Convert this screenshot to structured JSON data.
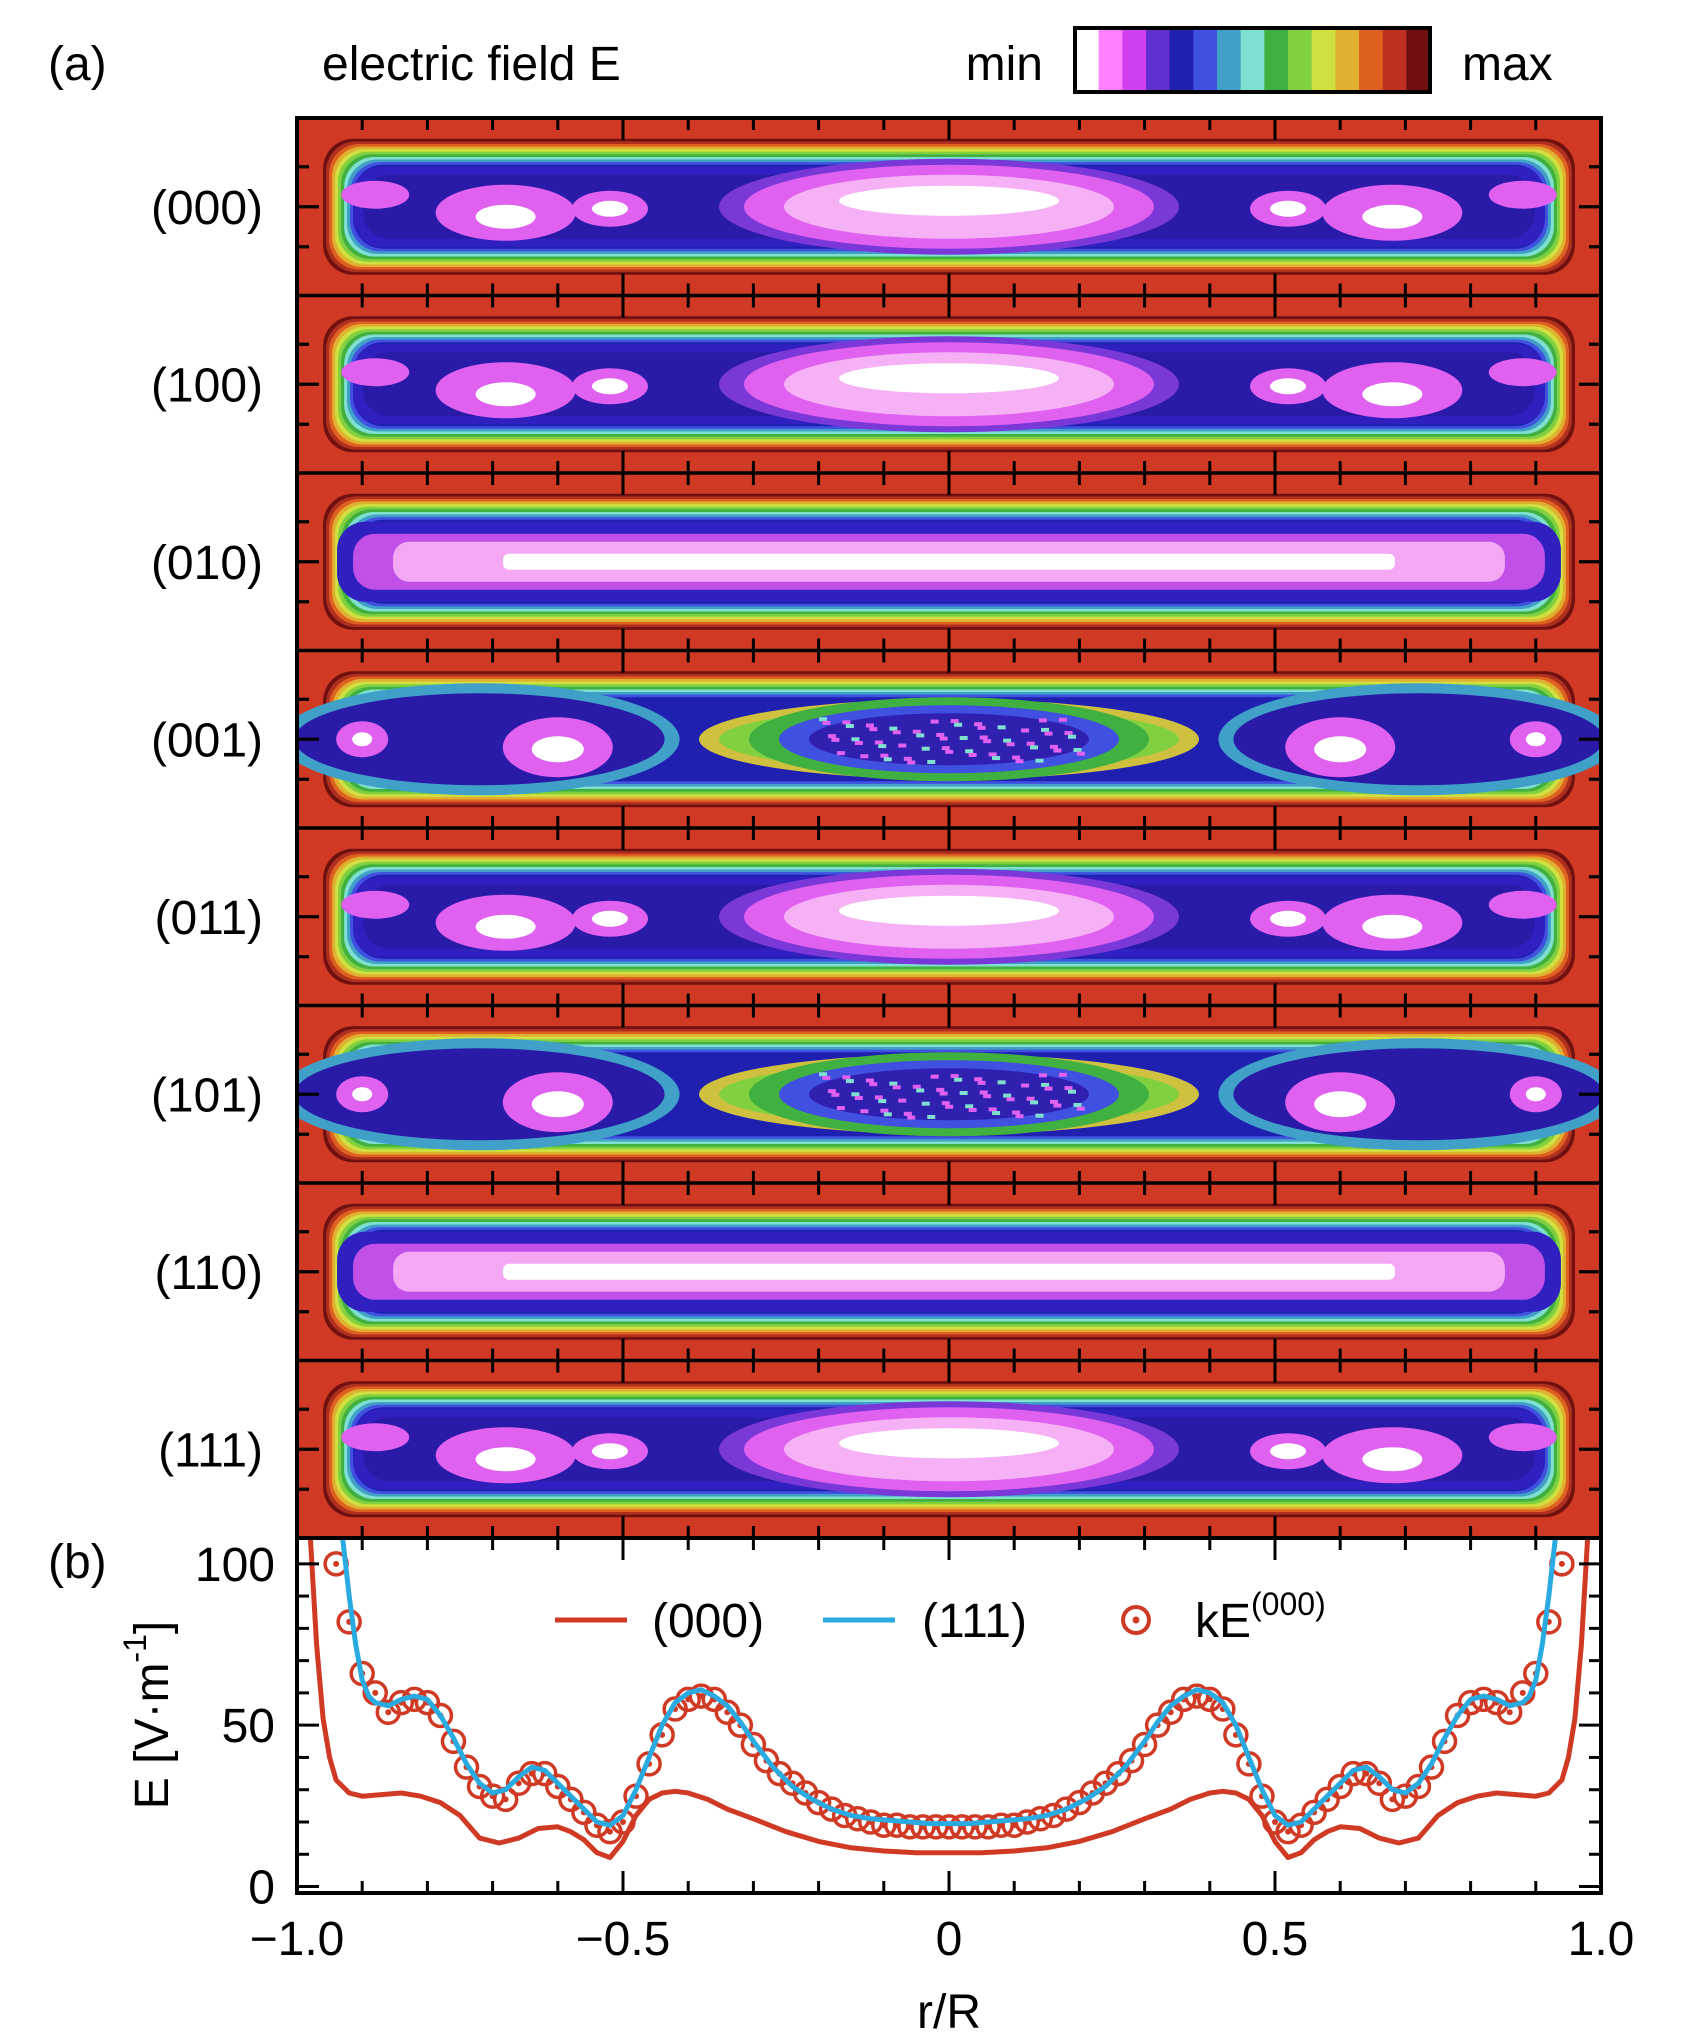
{
  "panel_a": {
    "letter": "(a)",
    "title": "electric field E",
    "colorbar": {
      "min_label": "min",
      "max_label": "max",
      "colors": [
        "#ffffff",
        "#ff80ff",
        "#d040f0",
        "#6030d0",
        "#2020b0",
        "#4050e0",
        "#40a0c8",
        "#80e0d0",
        "#40b040",
        "#80d040",
        "#d0e040",
        "#e0b030",
        "#e06020",
        "#c03020",
        "#701010"
      ]
    },
    "rows": [
      {
        "label": "(000)",
        "style": "A"
      },
      {
        "label": "(100)",
        "style": "A"
      },
      {
        "label": "(010)",
        "style": "B"
      },
      {
        "label": "(001)",
        "style": "C"
      },
      {
        "label": "(011)",
        "style": "A"
      },
      {
        "label": "(101)",
        "style": "C"
      },
      {
        "label": "(110)",
        "style": "B"
      },
      {
        "label": "(111)",
        "style": "A"
      }
    ],
    "background_color": "#d03a24"
  },
  "panel_b": {
    "letter": "(b)",
    "legend": [
      {
        "name": "(000)",
        "color": "#d03a24",
        "style": "line"
      },
      {
        "name": "(111)",
        "color": "#29aae1",
        "style": "line"
      },
      {
        "name": "kE",
        "superscript": "(000)",
        "color": "#d03a24",
        "style": "marker"
      }
    ],
    "chart_data": {
      "type": "line",
      "xlabel": "r/R",
      "ylabel": "E [V·m",
      "ylabel_unit_sup": "-1",
      "ylabel_close": "]",
      "xlim": [
        -1.0,
        1.0
      ],
      "ylim": [
        -2,
        108
      ],
      "x_ticks": [
        -1.0,
        -0.5,
        0,
        0.5,
        1.0
      ],
      "x_tick_labels": [
        "−1.0",
        "−0.5",
        "0",
        "0.5",
        "1.0"
      ],
      "y_ticks": [
        0,
        50,
        100
      ],
      "y_tick_labels": [
        "0",
        "50",
        "100"
      ],
      "series": [
        {
          "name": "(000)",
          "color": "#d03a24",
          "x": [
            -0.98,
            -0.97,
            -0.96,
            -0.95,
            -0.94,
            -0.92,
            -0.9,
            -0.87,
            -0.84,
            -0.81,
            -0.78,
            -0.75,
            -0.72,
            -0.69,
            -0.66,
            -0.63,
            -0.6,
            -0.58,
            -0.56,
            -0.54,
            -0.52,
            -0.5,
            -0.48,
            -0.46,
            -0.44,
            -0.42,
            -0.4,
            -0.37,
            -0.34,
            -0.3,
            -0.25,
            -0.2,
            -0.15,
            -0.1,
            -0.05,
            0,
            0.05,
            0.1,
            0.15,
            0.2,
            0.25,
            0.3,
            0.34,
            0.37,
            0.4,
            0.42,
            0.44,
            0.46,
            0.48,
            0.5,
            0.52,
            0.54,
            0.56,
            0.58,
            0.6,
            0.63,
            0.66,
            0.69,
            0.72,
            0.75,
            0.78,
            0.81,
            0.84,
            0.87,
            0.9,
            0.92,
            0.94,
            0.95,
            0.96,
            0.97,
            0.98
          ],
          "y": [
            110,
            75,
            52,
            40,
            33,
            29,
            28,
            28.5,
            29,
            28,
            26,
            22,
            15,
            13.5,
            15,
            18,
            18.5,
            17,
            14.5,
            10.5,
            9,
            14,
            22,
            27,
            29,
            29.5,
            29,
            27,
            24,
            21,
            17,
            14,
            12,
            11,
            10.5,
            10.5,
            10.5,
            11,
            12,
            14,
            17,
            21,
            24,
            27,
            29,
            29.5,
            29,
            27,
            22,
            14,
            9,
            10.5,
            14.5,
            17,
            18.5,
            18,
            15,
            13.5,
            15,
            22,
            26,
            28,
            29,
            28.5,
            28,
            29,
            33,
            40,
            52,
            75,
            110
          ]
        },
        {
          "name": "(111)",
          "color": "#29aae1",
          "x": [
            -0.93,
            -0.92,
            -0.91,
            -0.9,
            -0.89,
            -0.88,
            -0.86,
            -0.84,
            -0.82,
            -0.8,
            -0.78,
            -0.76,
            -0.74,
            -0.72,
            -0.7,
            -0.68,
            -0.66,
            -0.64,
            -0.62,
            -0.6,
            -0.58,
            -0.56,
            -0.54,
            -0.52,
            -0.5,
            -0.48,
            -0.46,
            -0.44,
            -0.42,
            -0.4,
            -0.38,
            -0.36,
            -0.34,
            -0.32,
            -0.3,
            -0.27,
            -0.24,
            -0.21,
            -0.18,
            -0.15,
            -0.12,
            -0.09,
            -0.06,
            -0.03,
            0,
            0.03,
            0.06,
            0.09,
            0.12,
            0.15,
            0.18,
            0.21,
            0.24,
            0.27,
            0.3,
            0.32,
            0.34,
            0.36,
            0.38,
            0.4,
            0.42,
            0.44,
            0.46,
            0.48,
            0.5,
            0.52,
            0.54,
            0.56,
            0.58,
            0.6,
            0.62,
            0.64,
            0.66,
            0.68,
            0.7,
            0.72,
            0.74,
            0.76,
            0.78,
            0.8,
            0.82,
            0.84,
            0.86,
            0.88,
            0.89,
            0.9,
            0.91,
            0.92,
            0.93
          ],
          "y": [
            108,
            90,
            75,
            64,
            59,
            57,
            56,
            58,
            59,
            58,
            53,
            46,
            38,
            32,
            29,
            30,
            34,
            37,
            36,
            32,
            28,
            24,
            20,
            19,
            22,
            30,
            40,
            50,
            57,
            60,
            61,
            59,
            56,
            51,
            45,
            37,
            31,
            27,
            24,
            22,
            21,
            20.5,
            20,
            19.5,
            19.5,
            19.5,
            20,
            20.5,
            21,
            22,
            24,
            27,
            31,
            37,
            45,
            51,
            56,
            59,
            61,
            60,
            57,
            50,
            40,
            30,
            22,
            19,
            20,
            24,
            28,
            32,
            36,
            37,
            34,
            30,
            29,
            32,
            38,
            46,
            53,
            58,
            59,
            58,
            56,
            57,
            59,
            64,
            75,
            90,
            108
          ]
        },
        {
          "name": "kE(000)",
          "color": "#d03a24",
          "marker": "circle-dot",
          "x": [
            -0.94,
            -0.92,
            -0.9,
            -0.88,
            -0.86,
            -0.84,
            -0.82,
            -0.8,
            -0.78,
            -0.76,
            -0.74,
            -0.72,
            -0.7,
            -0.68,
            -0.66,
            -0.64,
            -0.62,
            -0.6,
            -0.58,
            -0.56,
            -0.54,
            -0.52,
            -0.5,
            -0.48,
            -0.46,
            -0.44,
            -0.42,
            -0.4,
            -0.38,
            -0.36,
            -0.34,
            -0.32,
            -0.3,
            -0.28,
            -0.26,
            -0.24,
            -0.22,
            -0.2,
            -0.18,
            -0.16,
            -0.14,
            -0.12,
            -0.1,
            -0.08,
            -0.06,
            -0.04,
            -0.02,
            0,
            0.02,
            0.04,
            0.06,
            0.08,
            0.1,
            0.12,
            0.14,
            0.16,
            0.18,
            0.2,
            0.22,
            0.24,
            0.26,
            0.28,
            0.3,
            0.32,
            0.34,
            0.36,
            0.38,
            0.4,
            0.42,
            0.44,
            0.46,
            0.48,
            0.5,
            0.52,
            0.54,
            0.56,
            0.58,
            0.6,
            0.62,
            0.64,
            0.66,
            0.68,
            0.7,
            0.72,
            0.74,
            0.76,
            0.78,
            0.8,
            0.82,
            0.84,
            0.86,
            0.88,
            0.9,
            0.92,
            0.94
          ],
          "y": [
            100,
            82,
            66,
            60,
            54,
            57,
            58,
            57,
            53,
            45,
            37,
            31,
            28,
            27,
            32,
            35,
            35,
            31,
            27,
            23,
            19,
            17,
            20,
            28,
            38,
            47,
            55,
            58,
            59,
            58,
            54,
            50,
            44,
            39,
            35,
            32,
            29,
            26,
            24,
            22,
            21,
            20,
            19,
            19,
            18.5,
            18.5,
            18.5,
            18.5,
            18.5,
            18.5,
            18.5,
            19,
            19,
            20,
            21,
            22,
            24,
            26,
            29,
            32,
            35,
            39,
            44,
            50,
            54,
            58,
            59,
            58,
            55,
            47,
            38,
            28,
            20,
            17,
            19,
            23,
            27,
            31,
            35,
            35,
            32,
            27,
            28,
            31,
            37,
            45,
            53,
            57,
            58,
            57,
            54,
            60,
            66,
            82,
            100
          ]
        }
      ]
    }
  }
}
